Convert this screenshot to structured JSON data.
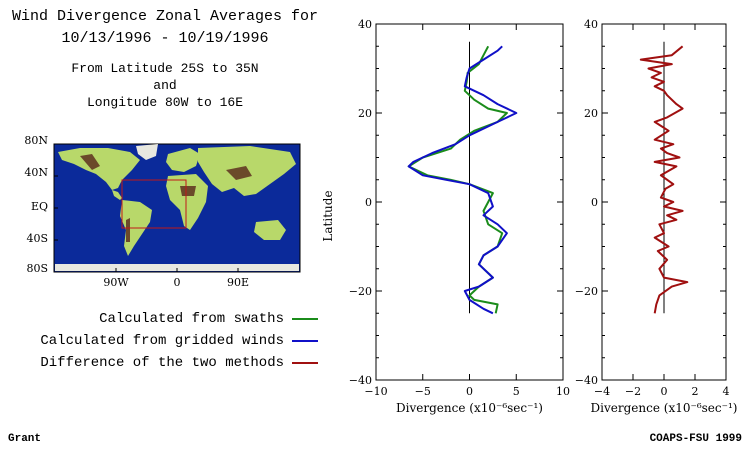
{
  "title": {
    "line1": "Wind Divergence Zonal Averages for",
    "line2": "10/13/1996 - 10/19/1996",
    "line3": "From Latitude 25S to 35N",
    "line4": "and",
    "line5": "Longitude 80W to 16E"
  },
  "map": {
    "lat_labels": [
      "80N",
      "40N",
      "EQ",
      "40S",
      "80S"
    ],
    "lon_labels": [
      "90W",
      "0",
      "90E"
    ],
    "colors": {
      "ocean": "#0b2a9a",
      "land": "#b8d86a",
      "mountains": "#6b4a2a",
      "region_box": "#c01818"
    }
  },
  "legend": [
    {
      "label": "Calculated from swaths",
      "color": "#1b8c1b"
    },
    {
      "label": "Calculated from gridded winds",
      "color": "#1010c8"
    },
    {
      "label": "Difference of the two methods",
      "color": "#a01010"
    }
  ],
  "footer": {
    "left": "Grant",
    "right": "COAPS-FSU 1999"
  },
  "chart_data": [
    {
      "type": "line",
      "ylabel": "Latitude",
      "xlabel": "Divergence (x10⁻⁶sec⁻¹)",
      "xlim": [
        -10,
        10
      ],
      "ylim": [
        -40,
        40
      ],
      "xticks": [
        -10,
        -5,
        0,
        5,
        10
      ],
      "yticks": [
        -40,
        -20,
        0,
        20,
        40
      ],
      "zero_line": {
        "x": 0,
        "y_range": [
          -25,
          36
        ]
      },
      "series": [
        {
          "name": "Calculated from swaths",
          "color": "#1b8c1b",
          "points": [
            [
              2.8,
              -25
            ],
            [
              3,
              -23
            ],
            [
              0.5,
              -22
            ],
            [
              0,
              -21
            ],
            [
              1,
              -19
            ],
            [
              2.5,
              -17
            ],
            [
              1,
              -14
            ],
            [
              1.5,
              -12
            ],
            [
              3,
              -10
            ],
            [
              3.5,
              -7
            ],
            [
              2,
              -5
            ],
            [
              1.5,
              -2
            ],
            [
              2,
              0
            ],
            [
              2.5,
              2
            ],
            [
              0,
              4
            ],
            [
              -2,
              5
            ],
            [
              -4.5,
              6
            ],
            [
              -6.5,
              8
            ],
            [
              -5,
              10
            ],
            [
              -2,
              12
            ],
            [
              -1,
              14
            ],
            [
              0.5,
              16
            ],
            [
              3,
              18
            ],
            [
              4,
              20
            ],
            [
              2,
              21
            ],
            [
              0.5,
              23
            ],
            [
              -0.5,
              25
            ],
            [
              -0.3,
              27
            ],
            [
              -0.2,
              29
            ],
            [
              1,
              31
            ],
            [
              1.5,
              33
            ],
            [
              2,
              35
            ]
          ]
        },
        {
          "name": "Calculated from gridded winds",
          "color": "#1010c8",
          "points": [
            [
              2.5,
              -25
            ],
            [
              1.5,
              -24
            ],
            [
              0,
              -22
            ],
            [
              -0.5,
              -20
            ],
            [
              1,
              -19
            ],
            [
              2.5,
              -17
            ],
            [
              1,
              -14
            ],
            [
              1.5,
              -12
            ],
            [
              3,
              -10
            ],
            [
              4,
              -7
            ],
            [
              3,
              -5
            ],
            [
              1.5,
              -3
            ],
            [
              2.5,
              -1
            ],
            [
              2,
              2
            ],
            [
              0,
              4
            ],
            [
              -2.5,
              5
            ],
            [
              -5,
              6
            ],
            [
              -6.5,
              8
            ],
            [
              -6,
              9
            ],
            [
              -4,
              11
            ],
            [
              -1.5,
              13
            ],
            [
              0,
              15
            ],
            [
              3,
              18
            ],
            [
              5,
              20
            ],
            [
              3,
              22
            ],
            [
              1.5,
              24
            ],
            [
              -0.5,
              26
            ],
            [
              -0.3,
              28
            ],
            [
              0,
              30
            ],
            [
              1.5,
              32
            ],
            [
              3,
              34
            ],
            [
              3.5,
              35
            ]
          ]
        }
      ]
    },
    {
      "type": "line",
      "xlabel": "Divergence (x10⁻⁶sec⁻¹)",
      "xlim": [
        -4,
        4
      ],
      "ylim": [
        -40,
        40
      ],
      "xticks": [
        -4,
        -2,
        0,
        2,
        4
      ],
      "yticks": [
        -40,
        -20,
        0,
        20,
        40
      ],
      "zero_line": {
        "x": 0,
        "y_range": [
          -25,
          36
        ]
      },
      "series": [
        {
          "name": "Difference of the two methods",
          "color": "#a01010",
          "points": [
            [
              -0.6,
              -25
            ],
            [
              -0.5,
              -23
            ],
            [
              -0.3,
              -21
            ],
            [
              0.5,
              -19
            ],
            [
              1.5,
              -18
            ],
            [
              0,
              -17
            ],
            [
              -0.3,
              -15
            ],
            [
              0.2,
              -13
            ],
            [
              -0.4,
              -11
            ],
            [
              0.3,
              -10
            ],
            [
              -0.6,
              -8
            ],
            [
              0,
              -7
            ],
            [
              -0.3,
              -5
            ],
            [
              0.8,
              -4
            ],
            [
              0.2,
              -3
            ],
            [
              1.2,
              -2
            ],
            [
              0,
              -1
            ],
            [
              0.6,
              0
            ],
            [
              -0.2,
              1
            ],
            [
              0.1,
              3
            ],
            [
              0.6,
              4
            ],
            [
              -0.2,
              6
            ],
            [
              0.8,
              8
            ],
            [
              -0.6,
              9
            ],
            [
              1,
              10
            ],
            [
              0.2,
              11
            ],
            [
              -0.2,
              12
            ],
            [
              0.6,
              13
            ],
            [
              -0.6,
              14
            ],
            [
              0.3,
              16
            ],
            [
              -0.6,
              18
            ],
            [
              0.2,
              19
            ],
            [
              1.2,
              21
            ],
            [
              0.8,
              22
            ],
            [
              0.2,
              24
            ],
            [
              0,
              25
            ],
            [
              -0.6,
              26
            ],
            [
              0,
              27
            ],
            [
              -0.8,
              28
            ],
            [
              -0.2,
              29
            ],
            [
              -1,
              30
            ],
            [
              0.5,
              31
            ],
            [
              -1.5,
              32
            ],
            [
              0.5,
              33
            ],
            [
              1.2,
              35
            ]
          ]
        }
      ]
    }
  ]
}
